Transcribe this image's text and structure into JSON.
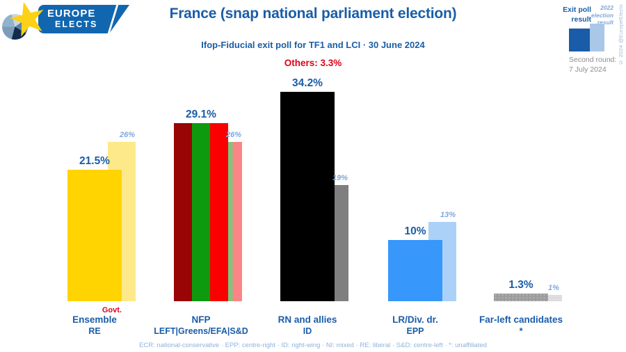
{
  "logo": {
    "title_line1": "EUROPE",
    "title_line2": "ELECTS"
  },
  "header": {
    "title": "France (snap national parliament election)",
    "subtitle": "Ifop-Fiducial exit poll for TF1 and LCI · 30 June 2024",
    "others_note": "Others: 3.3%"
  },
  "legend": {
    "exit_poll": [
      "Exit poll",
      "result"
    ],
    "election_2022": [
      "2022",
      "election",
      "result"
    ],
    "second_round_label": "Second round:",
    "second_round_date": "7 July 2024",
    "exit_color": "#1b5ca8",
    "prev_color": "#a9c8e8"
  },
  "chart_data": {
    "type": "bar",
    "unit": "percent",
    "title": "France (snap national parliament election)",
    "ylim": [
      0,
      36
    ],
    "series": [
      {
        "name": "Exit poll result"
      },
      {
        "name": "2022 election result"
      }
    ],
    "parties": [
      {
        "name": "Ensemble",
        "eu_group": "RE",
        "note": "Govt.",
        "value": 21.5,
        "value_label": "21.5%",
        "prev_value": 26,
        "prev_label": "26%",
        "colors": [
          "#ffd400"
        ],
        "prev_colors": [
          "#fde98a"
        ],
        "textured": false
      },
      {
        "name": "NFP",
        "eu_group": "LEFT|Greens/EFA|S&D",
        "note": "",
        "value": 29.1,
        "value_label": "29.1%",
        "prev_value": 26,
        "prev_label": "26%",
        "colors": [
          "#990404",
          "#0e9a0e",
          "#fb0000"
        ],
        "prev_colors": [
          "#ce8e86",
          "#7fc57f",
          "#fb8585"
        ],
        "textured": false
      },
      {
        "name": "RN and allies",
        "eu_group": "ID",
        "note": "",
        "value": 34.2,
        "value_label": "34.2%",
        "prev_value": 19,
        "prev_label": "19%",
        "colors": [
          "#000000"
        ],
        "prev_colors": [
          "#7f7f7f"
        ],
        "textured": false
      },
      {
        "name": "LR/Div. dr.",
        "eu_group": "EPP",
        "note": "",
        "value": 10,
        "value_label": "10%",
        "prev_value": 13,
        "prev_label": "13%",
        "colors": [
          "#3797fb"
        ],
        "prev_colors": [
          "#abd1f8"
        ],
        "textured": false
      },
      {
        "name": "Far-left candidates",
        "eu_group": "*",
        "note": "",
        "value": 1.3,
        "value_label": "1.3%",
        "prev_value": 1,
        "prev_label": "1%",
        "colors": [
          "#9c9c9c"
        ],
        "prev_colors": [
          "#dbdbdb"
        ],
        "textured": true
      }
    ]
  },
  "footer": {
    "abbreviations": "ECR: national-conservative · EPP: centre-right · ID: right-wing · NI: mixed · RE: liberal · S&D: centre-left · *: unaffiliated"
  },
  "copyright": "© 2024 @EuropeElects"
}
